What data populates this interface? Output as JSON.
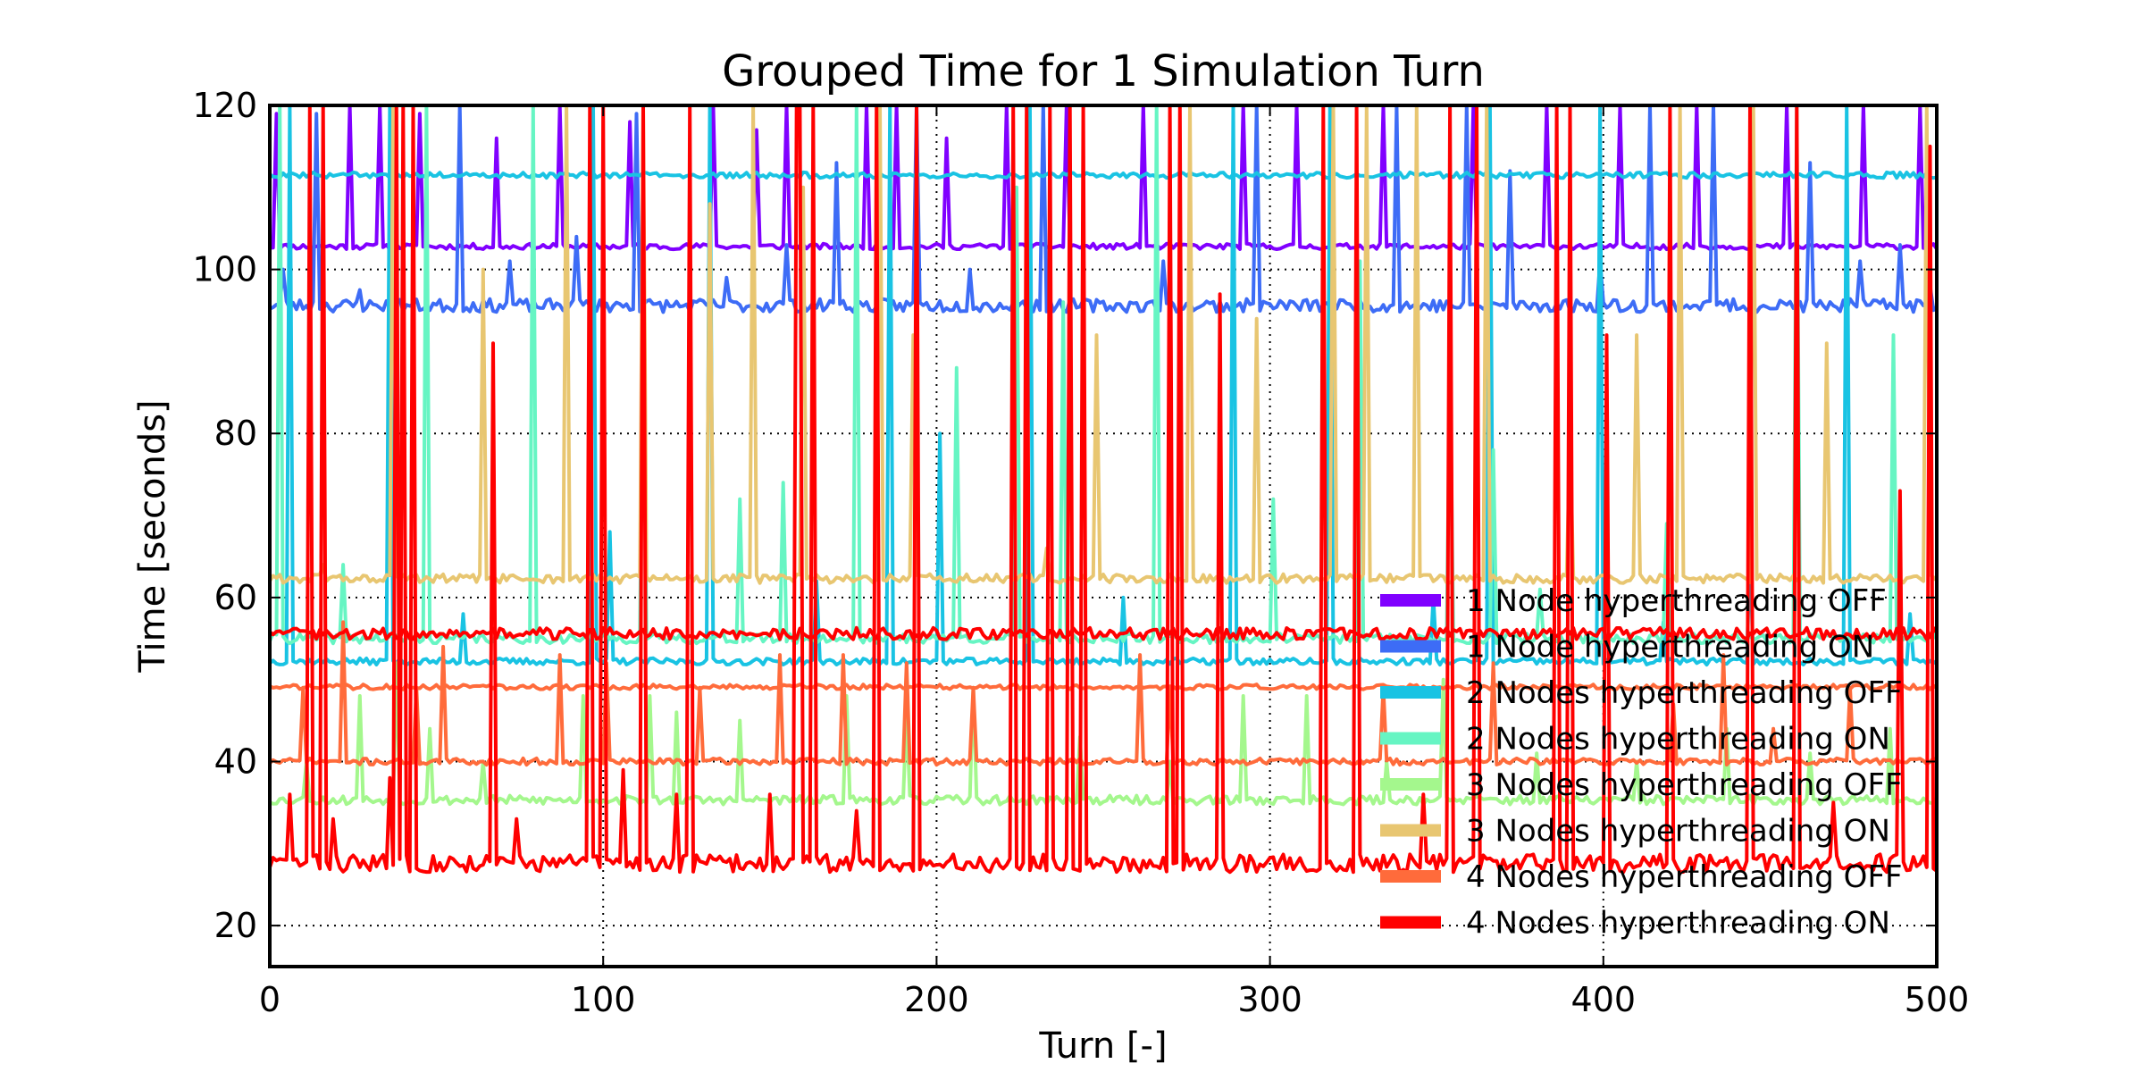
{
  "chart_data": {
    "type": "line",
    "title": "Grouped Time for 1 Simulation Turn",
    "xlabel": "Turn [-]",
    "ylabel": "Time [seconds]",
    "xlim": [
      0,
      500
    ],
    "ylim": [
      15,
      120
    ],
    "xticks": [
      0,
      100,
      200,
      300,
      400,
      500
    ],
    "yticks": [
      20,
      40,
      60,
      80,
      100,
      120
    ],
    "grid": true,
    "legend_position": "lower-right",
    "series": [
      {
        "name": "1 Node hyperthreading OFF",
        "color": "#8000ff",
        "baseline": 102.8,
        "noise": 0.35,
        "seed": 11,
        "spikes": [
          [
            2,
            119
          ],
          [
            24,
            120
          ],
          [
            33,
            120
          ],
          [
            45,
            119
          ],
          [
            68,
            116
          ],
          [
            87,
            120
          ],
          [
            108,
            118
          ],
          [
            133,
            120
          ],
          [
            146,
            117
          ],
          [
            155,
            120
          ],
          [
            179,
            120
          ],
          [
            188,
            120
          ],
          [
            203,
            116
          ],
          [
            221,
            120
          ],
          [
            239,
            120
          ],
          [
            262,
            120
          ],
          [
            292,
            120
          ],
          [
            308,
            120
          ],
          [
            334,
            120
          ],
          [
            361,
            120
          ],
          [
            383,
            120
          ],
          [
            405,
            120
          ],
          [
            428,
            120
          ],
          [
            455,
            120
          ],
          [
            478,
            120
          ],
          [
            495,
            120
          ]
        ]
      },
      {
        "name": "1 Node hyperthreading ON",
        "color": "#3d6cf6",
        "baseline": 95.6,
        "noise": 0.8,
        "seed": 23,
        "spikes": [
          [
            4,
            100
          ],
          [
            14,
            119
          ],
          [
            27,
            97.5
          ],
          [
            57,
            120
          ],
          [
            72,
            101
          ],
          [
            92,
            104
          ],
          [
            110,
            119
          ],
          [
            137,
            99
          ],
          [
            155,
            103
          ],
          [
            170,
            113
          ],
          [
            194,
            120
          ],
          [
            210,
            100
          ],
          [
            232,
            120
          ],
          [
            268,
            101
          ],
          [
            296,
            120
          ],
          [
            338,
            120
          ],
          [
            359,
            120
          ],
          [
            372,
            112
          ],
          [
            399,
            101
          ],
          [
            414,
            120
          ],
          [
            433,
            120
          ],
          [
            462,
            113
          ],
          [
            477,
            101
          ],
          [
            489,
            103
          ],
          [
            498,
            98
          ]
        ]
      },
      {
        "name": "2 Nodes hyperthreading OFF",
        "color": "#19c3e3",
        "baseline": 52.2,
        "noise": 0.4,
        "seed": 37,
        "spikes": [
          [
            6,
            120
          ],
          [
            36,
            120
          ],
          [
            58,
            58
          ],
          [
            97,
            120
          ],
          [
            102,
            68
          ],
          [
            132,
            120
          ],
          [
            164,
            62
          ],
          [
            186,
            120
          ],
          [
            201,
            80
          ],
          [
            228,
            120
          ],
          [
            256,
            60
          ],
          [
            289,
            120
          ],
          [
            318,
            120
          ],
          [
            349,
            60
          ],
          [
            366,
            120
          ],
          [
            399,
            120
          ],
          [
            418,
            57
          ],
          [
            444,
            66
          ],
          [
            473,
            120
          ],
          [
            492,
            58
          ]
        ],
        "upper_level": 111.5,
        "upper_noise": 0.35
      },
      {
        "name": "2 Nodes hyperthreading ON",
        "color": "#66f5c3",
        "baseline": 55.0,
        "noise": 0.6,
        "seed": 41,
        "spikes": [
          [
            3,
            120
          ],
          [
            22,
            64
          ],
          [
            47,
            120
          ],
          [
            79,
            120
          ],
          [
            112,
            95
          ],
          [
            141,
            72
          ],
          [
            154,
            74
          ],
          [
            176,
            120
          ],
          [
            206,
            88
          ],
          [
            224,
            110
          ],
          [
            238,
            96
          ],
          [
            266,
            120
          ],
          [
            301,
            72
          ],
          [
            327,
            101
          ],
          [
            354,
            90
          ],
          [
            367,
            78
          ],
          [
            381,
            61
          ],
          [
            419,
            69
          ],
          [
            458,
            120
          ],
          [
            487,
            92
          ]
        ]
      },
      {
        "name": "3 Nodes hyperthreading OFF",
        "color": "#a4f78d",
        "baseline": 35.3,
        "noise": 0.55,
        "seed": 53,
        "spikes": [
          [
            11,
            40
          ],
          [
            27,
            48
          ],
          [
            38,
            52
          ],
          [
            48,
            44
          ],
          [
            64,
            40
          ],
          [
            94,
            48
          ],
          [
            114,
            48
          ],
          [
            122,
            46
          ],
          [
            141,
            45
          ],
          [
            173,
            48
          ],
          [
            191,
            46
          ],
          [
            211,
            49
          ],
          [
            243,
            43
          ],
          [
            270,
            40
          ],
          [
            292,
            48
          ],
          [
            311,
            48
          ],
          [
            335,
            40
          ],
          [
            352,
            50
          ],
          [
            380,
            41
          ],
          [
            410,
            40
          ],
          [
            437,
            44
          ],
          [
            462,
            41
          ],
          [
            486,
            44
          ]
        ]
      },
      {
        "name": "3 Nodes hyperthreading ON",
        "color": "#e8c671",
        "baseline": 62.3,
        "noise": 0.55,
        "seed": 61,
        "spikes": [
          [
            16,
            64
          ],
          [
            37,
            120
          ],
          [
            64,
            100
          ],
          [
            89,
            120
          ],
          [
            112,
            120
          ],
          [
            132,
            108
          ],
          [
            145,
            120
          ],
          [
            160,
            110
          ],
          [
            183,
            120
          ],
          [
            193,
            92
          ],
          [
            212,
            62
          ],
          [
            233,
            66
          ],
          [
            248,
            92
          ],
          [
            276,
            120
          ],
          [
            296,
            94
          ],
          [
            319,
            120
          ],
          [
            329,
            120
          ],
          [
            344,
            120
          ],
          [
            365,
            120
          ],
          [
            390,
            80
          ],
          [
            410,
            92
          ],
          [
            423,
            120
          ],
          [
            445,
            120
          ],
          [
            467,
            91
          ],
          [
            497,
            120
          ]
        ]
      },
      {
        "name": "4 Nodes hyperthreading OFF",
        "color": "#ff6b3b",
        "baseline": 40.0,
        "noise": 0.4,
        "seed": 71,
        "spikes": [
          [
            10,
            49
          ],
          [
            22,
            57
          ],
          [
            44,
            49
          ],
          [
            52,
            54
          ],
          [
            87,
            53
          ],
          [
            101,
            52
          ],
          [
            129,
            49
          ],
          [
            153,
            53
          ],
          [
            172,
            53
          ],
          [
            191,
            52
          ],
          [
            211,
            49
          ],
          [
            261,
            53
          ],
          [
            270,
            49
          ],
          [
            334,
            49
          ],
          [
            367,
            52
          ],
          [
            421,
            47
          ],
          [
            436,
            53
          ],
          [
            451,
            44
          ],
          [
            474,
            49
          ]
        ],
        "upper_level": 49.1,
        "upper_noise": 0.3
      },
      {
        "name": "4 Nodes hyperthreading ON",
        "color": "#ff0000",
        "baseline": 27.6,
        "noise": 1.1,
        "seed": 83,
        "spikes": [
          [
            6,
            36
          ],
          [
            12,
            120
          ],
          [
            16,
            120
          ],
          [
            19,
            33
          ],
          [
            36,
            38
          ],
          [
            38,
            120
          ],
          [
            40,
            120
          ],
          [
            43,
            120
          ],
          [
            67,
            91
          ],
          [
            74,
            33
          ],
          [
            96,
            120
          ],
          [
            100,
            120
          ],
          [
            106,
            39
          ],
          [
            112,
            120
          ],
          [
            122,
            36
          ],
          [
            126,
            120
          ],
          [
            150,
            36
          ],
          [
            158,
            120
          ],
          [
            159,
            120
          ],
          [
            163,
            120
          ],
          [
            176,
            34
          ],
          [
            182,
            120
          ],
          [
            194,
            120
          ],
          [
            223,
            120
          ],
          [
            227,
            120
          ],
          [
            234,
            120
          ],
          [
            240,
            120
          ],
          [
            244,
            120
          ],
          [
            270,
            120
          ],
          [
            273,
            120
          ],
          [
            285,
            97
          ],
          [
            316,
            120
          ],
          [
            326,
            120
          ],
          [
            346,
            36
          ],
          [
            354,
            120
          ],
          [
            362,
            120
          ],
          [
            386,
            120
          ],
          [
            390,
            120
          ],
          [
            401,
            92
          ],
          [
            420,
            120
          ],
          [
            444,
            120
          ],
          [
            458,
            120
          ],
          [
            469,
            35
          ],
          [
            489,
            73
          ],
          [
            498,
            115
          ]
        ],
        "upper_level": 55.6,
        "upper_noise": 0.7
      }
    ]
  }
}
